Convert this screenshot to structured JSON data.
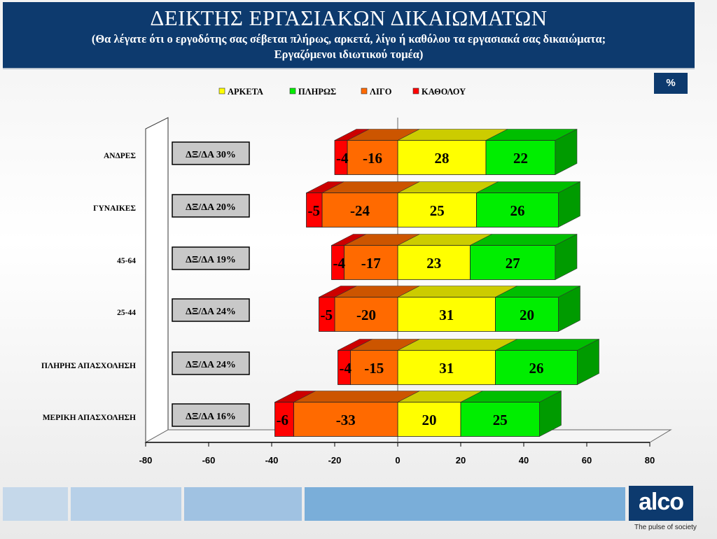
{
  "header": {
    "title": "ΔΕΙΚΤΗΣ ΕΡΓΑΣΙΑΚΩΝ ΔΙΚΑΙΩΜΑΤΩΝ",
    "subtitle_line1": "(Θα λέγατε ότι ο εργοδότης σας σέβεται πλήρως, αρκετά, λίγο ή καθόλου τα εργασιακά σας δικαιώματα;",
    "subtitle_line2": "Εργαζόμενοι ιδιωτικού τομέα)"
  },
  "unit_label": "%",
  "brand": {
    "logo": "alco",
    "tagline": "The pulse of society"
  },
  "chart_data": {
    "type": "bar",
    "orientation": "horizontal",
    "stacked": "diverging",
    "categories": [
      "ΑΝΔΡΕΣ",
      "ΓΥΝΑΙΚΕΣ",
      "45-64",
      "25-44",
      "ΠΛΗΡΗΣ ΑΠΑΣΧΟΛΗΣΗ",
      "ΜΕΡΙΚΗ ΑΠΑΣΧΟΛΗΣΗ"
    ],
    "series": [
      {
        "name": "ΑΡΚΕΤΑ",
        "color": "#ffff00",
        "values": [
          28,
          25,
          23,
          31,
          31,
          20
        ]
      },
      {
        "name": "ΠΛΗΡΩΣ",
        "color": "#00ee00",
        "values": [
          22,
          26,
          27,
          20,
          26,
          25
        ]
      },
      {
        "name": "ΛΙΓΟ",
        "color": "#ff6a00",
        "values": [
          -16,
          -24,
          -17,
          -20,
          -15,
          -33
        ]
      },
      {
        "name": "ΚΑΘΟΛΟΥ",
        "color": "#ff0000",
        "values": [
          -4,
          -5,
          -4,
          -5,
          -4,
          -6
        ]
      }
    ],
    "net_labels": [
      "ΔΞ/ΔΑ 30%",
      "ΔΞ/ΔΑ 20%",
      "ΔΞ/ΔΑ 19%",
      "ΔΞ/ΔΑ 24%",
      "ΔΞ/ΔΑ 24%",
      "ΔΞ/ΔΑ 16%"
    ],
    "xlim": [
      -80,
      80
    ],
    "xticks": [
      -80,
      -60,
      -40,
      -20,
      0,
      20,
      40,
      60,
      80
    ],
    "legend_position": "top",
    "grid": false
  }
}
